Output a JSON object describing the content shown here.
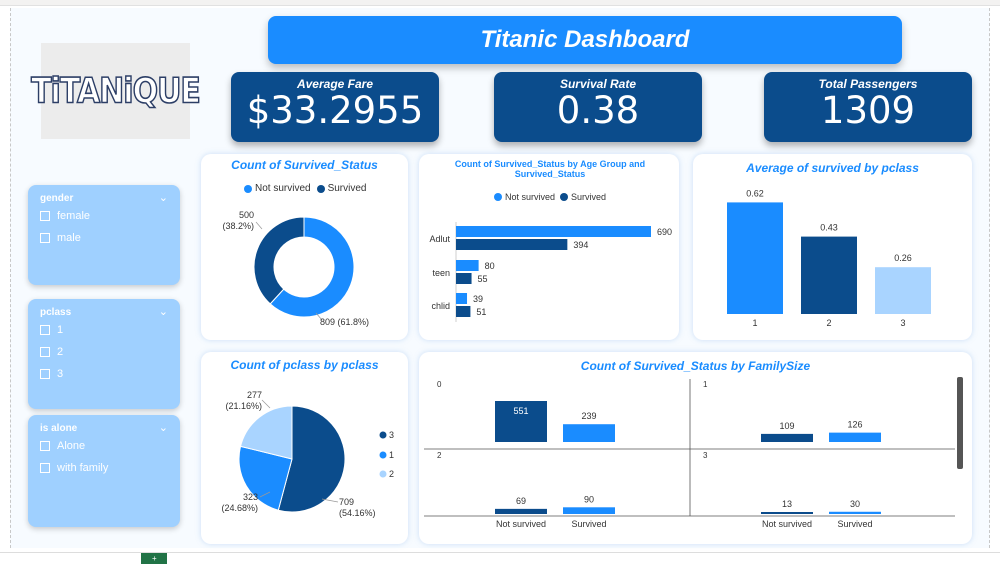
{
  "title": "Titanic Dashboard",
  "logo_text": "TiTANiQUE",
  "kpis": [
    {
      "label": "Average Fare",
      "value": "$33.2955"
    },
    {
      "label": "Survival Rate",
      "value": "0.38"
    },
    {
      "label": "Total Passengers",
      "value": "1309"
    }
  ],
  "slicers": [
    {
      "title": "gender",
      "options": [
        "female",
        "male"
      ]
    },
    {
      "title": "pclass",
      "options": [
        "1",
        "2",
        "3"
      ]
    },
    {
      "title": "is alone",
      "options": [
        "Alone",
        "with family"
      ]
    }
  ],
  "colors": {
    "light": "#1a8cff",
    "dark": "#0b4c8c",
    "pale": "#a9d4ff",
    "accent": "#1a8cff"
  },
  "chart_data": [
    {
      "id": "survived_donut",
      "type": "pie",
      "title": "Count of Survived_Status",
      "legend": [
        "Not survived",
        "Survived"
      ],
      "values": [
        809,
        500
      ],
      "labels": [
        "809 (61.8%)",
        "500\n(38.2%)"
      ]
    },
    {
      "id": "age_group",
      "type": "bar",
      "orientation": "horizontal",
      "title": "Count of Survived_Status by Age Group and Survived_Status",
      "legend": [
        "Not survived",
        "Survived"
      ],
      "categories": [
        "Adlut",
        "teen",
        "chlid"
      ],
      "series": [
        {
          "name": "Not survived",
          "values": [
            690,
            80,
            39
          ]
        },
        {
          "name": "Survived",
          "values": [
            394,
            55,
            51
          ]
        }
      ]
    },
    {
      "id": "avg_pclass",
      "type": "bar",
      "title": "Average of survived by pclass",
      "categories": [
        "1",
        "2",
        "3"
      ],
      "values": [
        0.62,
        0.43,
        0.26
      ],
      "value_labels": [
        "0.62",
        "0.43",
        "0.26"
      ]
    },
    {
      "id": "pclass_pie",
      "type": "pie",
      "title": "Count of pclass by pclass",
      "legend": [
        "3",
        "1",
        "2"
      ],
      "values": [
        709,
        323,
        277
      ],
      "labels": [
        "709\n(54.16%)",
        "323\n(24.68%)",
        "277\n(21.16%)"
      ]
    },
    {
      "id": "familysize",
      "type": "bar",
      "title": "Count of Survived_Status by FamilySize",
      "categories": [
        "Not survived",
        "Survived"
      ],
      "panels": [
        {
          "label": "0",
          "values": [
            551,
            239
          ]
        },
        {
          "label": "1",
          "values": [
            109,
            126
          ]
        },
        {
          "label": "2",
          "values": [
            69,
            90
          ]
        },
        {
          "label": "3",
          "values": [
            13,
            30
          ]
        }
      ]
    }
  ]
}
